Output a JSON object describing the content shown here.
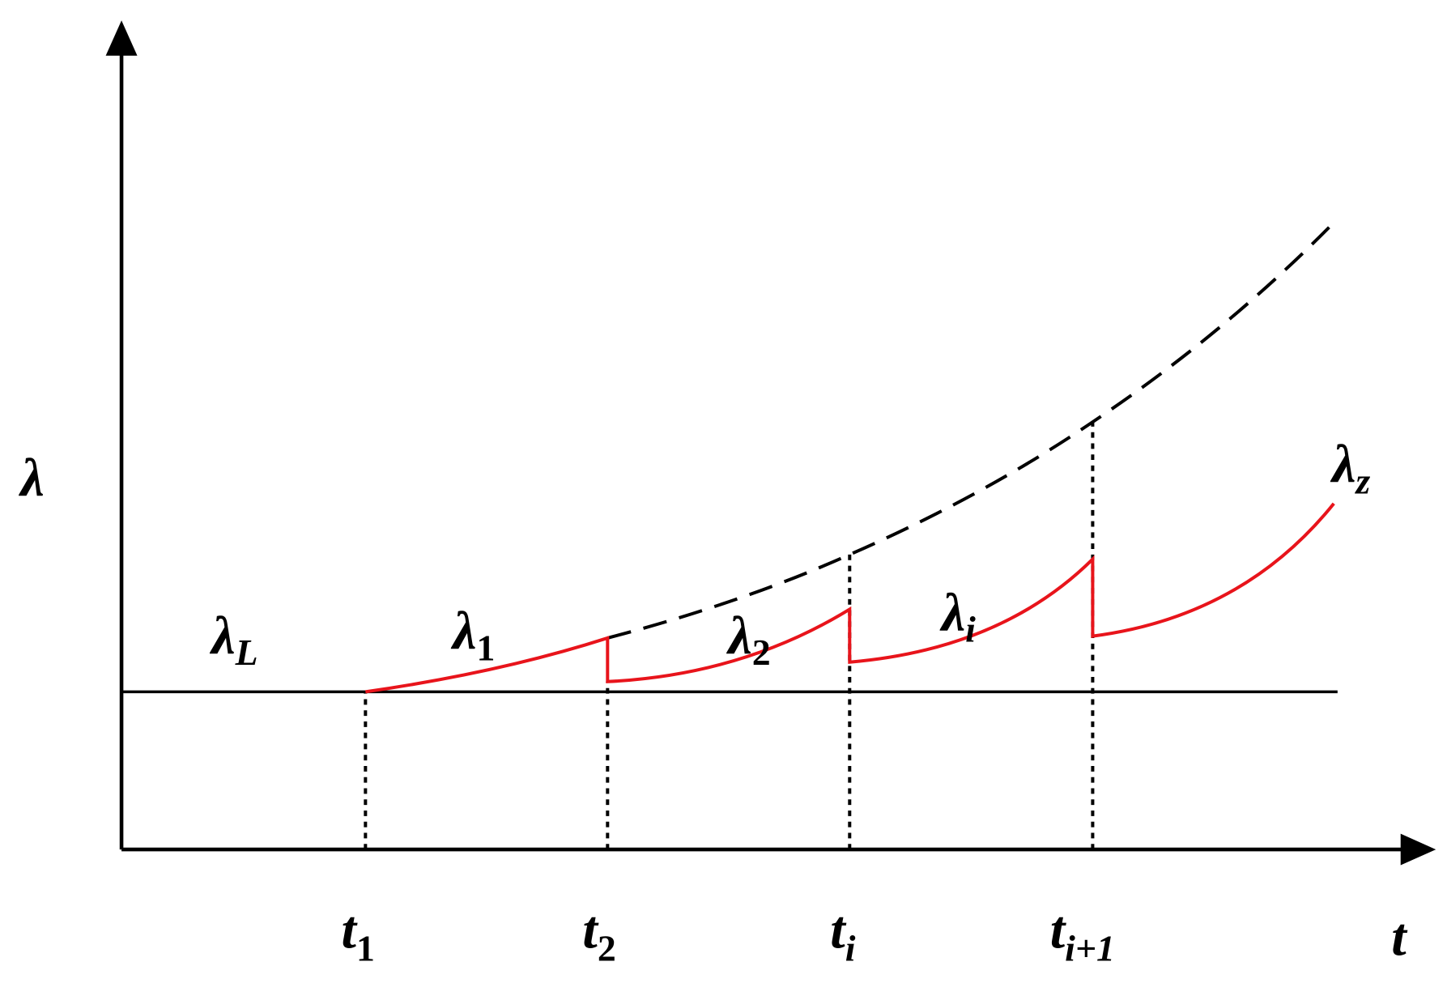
{
  "y_axis_label": "λ",
  "x_axis_label": "t",
  "curve_labels": [
    {
      "base": "λ",
      "sub": "L"
    },
    {
      "base": "λ",
      "sub": "1"
    },
    {
      "base": "λ",
      "sub": "2"
    },
    {
      "base": "λ",
      "sub": "i"
    },
    {
      "base": "λ",
      "sub": "z"
    }
  ],
  "time_labels": [
    {
      "base": "t",
      "sub": "1"
    },
    {
      "base": "t",
      "sub": "2"
    },
    {
      "base": "t",
      "sub": "i"
    },
    {
      "base": "t",
      "sub": "i+1"
    }
  ]
}
